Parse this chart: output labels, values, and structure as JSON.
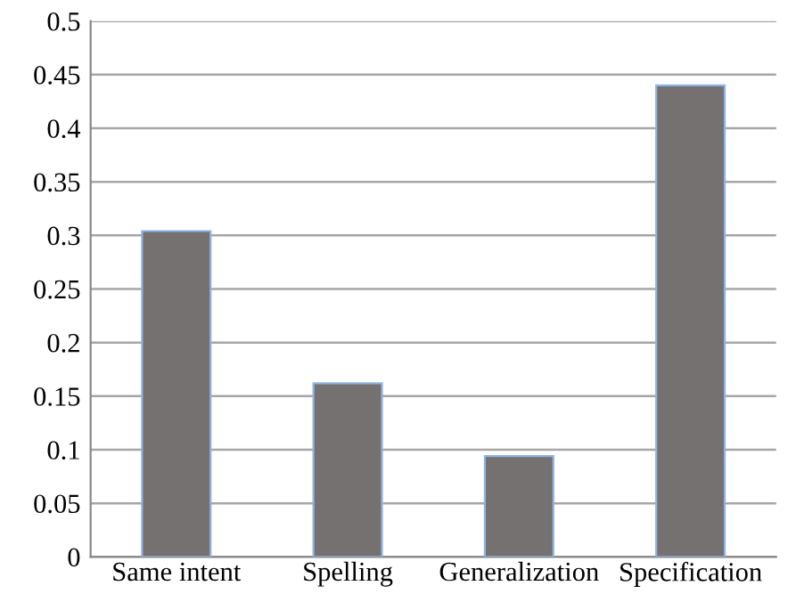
{
  "chart_data": {
    "type": "bar",
    "categories": [
      "Same intent",
      "Spelling",
      "Generalization",
      "Specification"
    ],
    "values": [
      0.304,
      0.162,
      0.094,
      0.44
    ],
    "color": "#767171",
    "ylim": [
      0,
      0.5
    ],
    "yticks": [
      0,
      0.05,
      0.1,
      0.15,
      0.2,
      0.25,
      0.3,
      0.35,
      0.4,
      0.45,
      0.5
    ],
    "grid": "y"
  }
}
